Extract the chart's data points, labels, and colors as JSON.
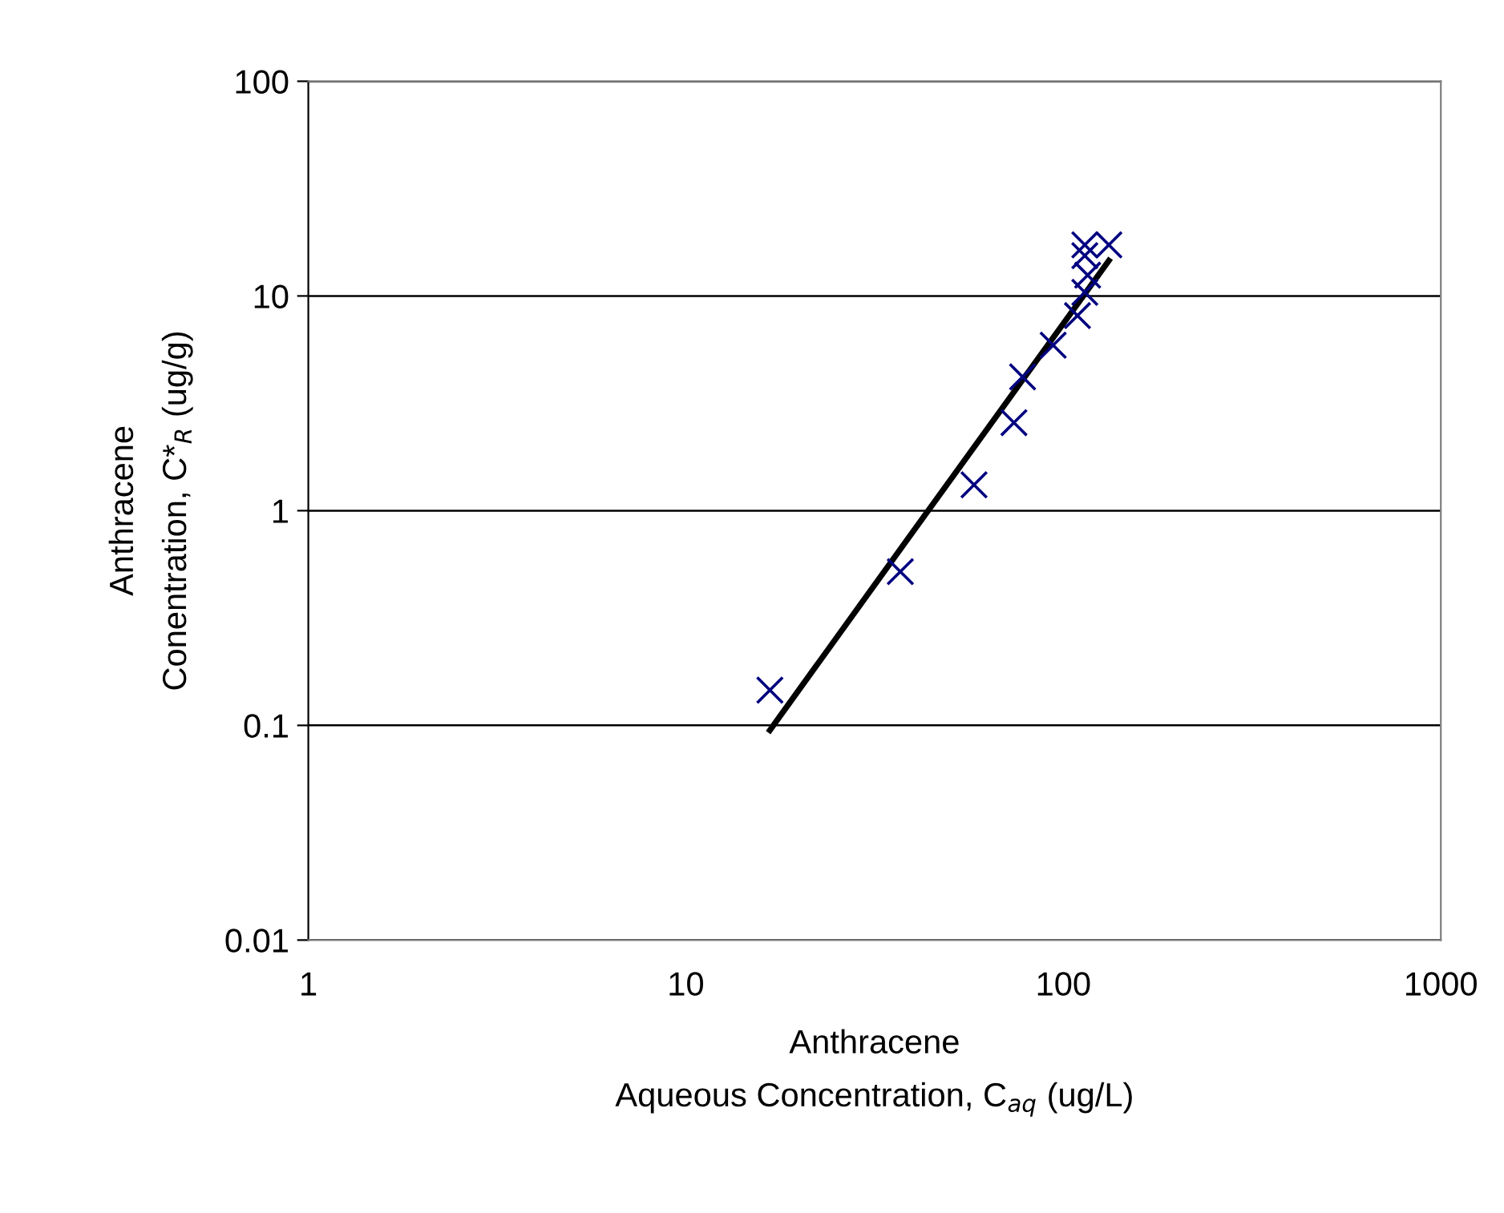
{
  "chart_data": {
    "type": "scatter",
    "log": "xy",
    "xlabel": "Anthracene\nAqueous Concentration, C$_{aq}$ (ug/L)",
    "ylabel": "Anthracene\nConentration, C*$_{R}$ (ug/g)",
    "xlim": [
      1,
      1000
    ],
    "xticks": [
      1,
      10,
      100,
      1000
    ],
    "ylim": [
      0.01,
      100
    ],
    "yticks": [
      0.01,
      0.1,
      1,
      10,
      100
    ],
    "grid": "y",
    "legend": false,
    "series": [
      {
        "color": "#000080",
        "marker": "cross",
        "x": [
          16.7,
          37,
          58,
          74,
          78,
          94,
          109,
          114,
          116,
          114,
          114,
          132
        ],
        "values": [
          0.146,
          0.52,
          1.32,
          2.57,
          4.2,
          5.9,
          8.1,
          10.4,
          12.5,
          15.4,
          17.3,
          17.3
        ]
      },
      {
        "type": "line",
        "color": "#000000",
        "marker": "none",
        "line_style": "solid",
        "x": [
          16.7,
          40,
          132
        ],
        "values": [
          0.095,
          0.8,
          14.6
        ]
      }
    ]
  }
}
